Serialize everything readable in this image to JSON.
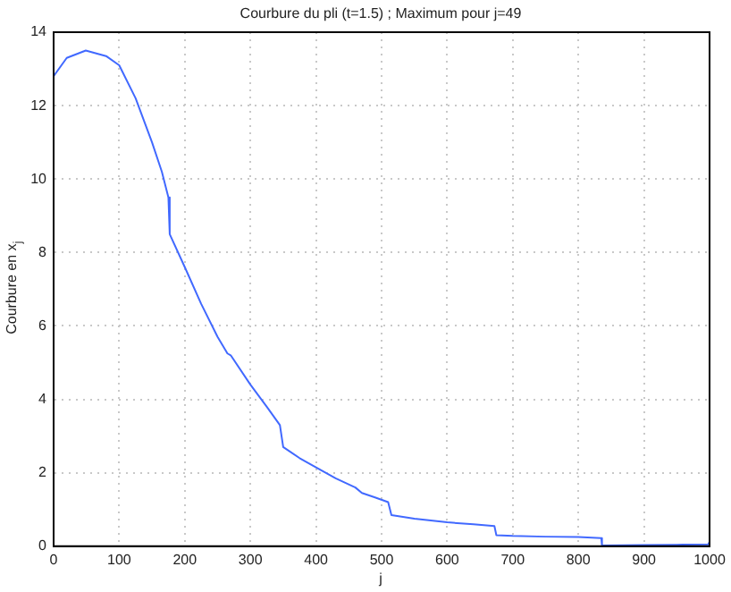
{
  "chart_data": {
    "type": "line",
    "title": "Courbure du pli (t=1.5) ; Maximum pour j=49",
    "xlabel": "j",
    "ylabel": "Courbure en x$_{j}$",
    "series": [
      {
        "color": "#4169ff",
        "x": [
          0,
          20,
          49,
          80,
          100,
          125,
          150,
          165,
          175,
          177,
          200,
          225,
          250,
          265,
          270,
          300,
          325,
          345,
          350,
          375,
          400,
          430,
          460,
          470,
          490,
          510,
          515,
          550,
          600,
          640,
          672,
          675,
          700,
          750,
          800,
          835,
          836,
          900,
          950,
          998,
          1000
        ],
        "values": [
          12.8,
          13.3,
          13.5,
          13.35,
          13.1,
          12.2,
          11.0,
          10.2,
          9.5,
          8.5,
          7.6,
          6.6,
          5.7,
          5.25,
          5.2,
          4.4,
          3.8,
          3.3,
          2.7,
          2.4,
          2.15,
          1.85,
          1.6,
          1.45,
          1.33,
          1.2,
          0.85,
          0.75,
          0.65,
          0.6,
          0.55,
          0.3,
          0.28,
          0.26,
          0.25,
          0.22,
          0.02,
          0.03,
          0.04,
          0.05,
          0.12
        ]
      }
    ],
    "xlim": [
      0,
      1000
    ],
    "xticks": [
      0,
      100,
      200,
      300,
      400,
      500,
      600,
      700,
      800,
      900,
      1000
    ],
    "ylim": [
      0,
      14
    ],
    "yticks": [
      0,
      2,
      4,
      6,
      8,
      10,
      12,
      14
    ],
    "grid": true,
    "line_style": "solid",
    "marker": "none"
  }
}
